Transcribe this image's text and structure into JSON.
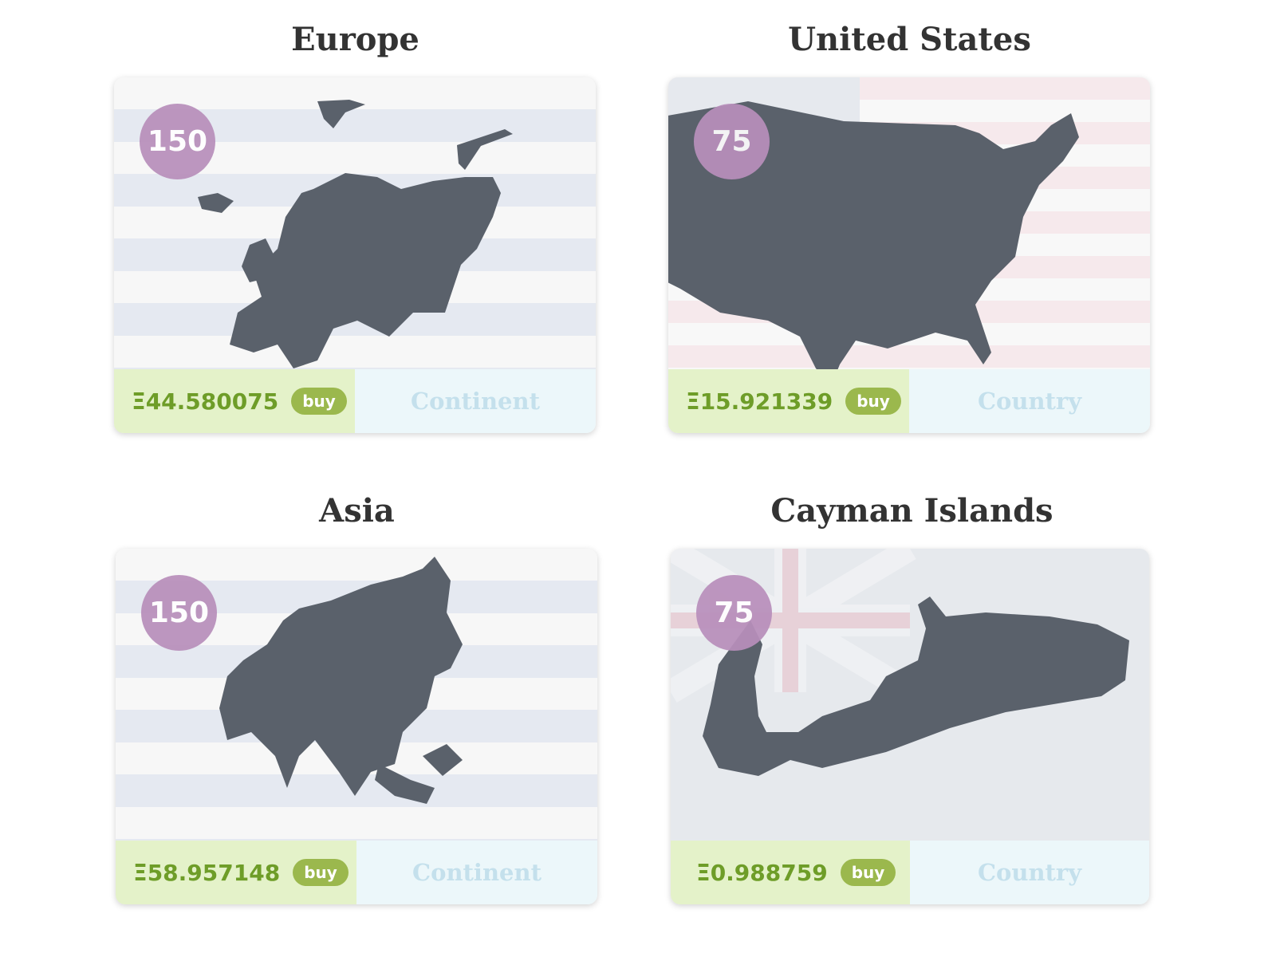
{
  "cards": [
    {
      "title": "Europe",
      "badge": "150",
      "price": "Ξ44.580075",
      "buy_label": "buy",
      "type": "Continent"
    },
    {
      "title": "United States",
      "badge": "75",
      "price": "Ξ15.921339",
      "buy_label": "buy",
      "type": "Country"
    },
    {
      "title": "Asia",
      "badge": "150",
      "price": "Ξ58.957148",
      "buy_label": "buy",
      "type": "Continent"
    },
    {
      "title": "Cayman Islands",
      "badge": "75",
      "price": "Ξ0.988759",
      "buy_label": "buy",
      "type": "Country"
    }
  ],
  "colors": {
    "map": "#5a616b",
    "badge": "#b88fbb",
    "price": "#6e9d28",
    "buy": "#9bb84d",
    "price_bg": "#e4f2c9",
    "type_bg": "#ecf7fa"
  }
}
